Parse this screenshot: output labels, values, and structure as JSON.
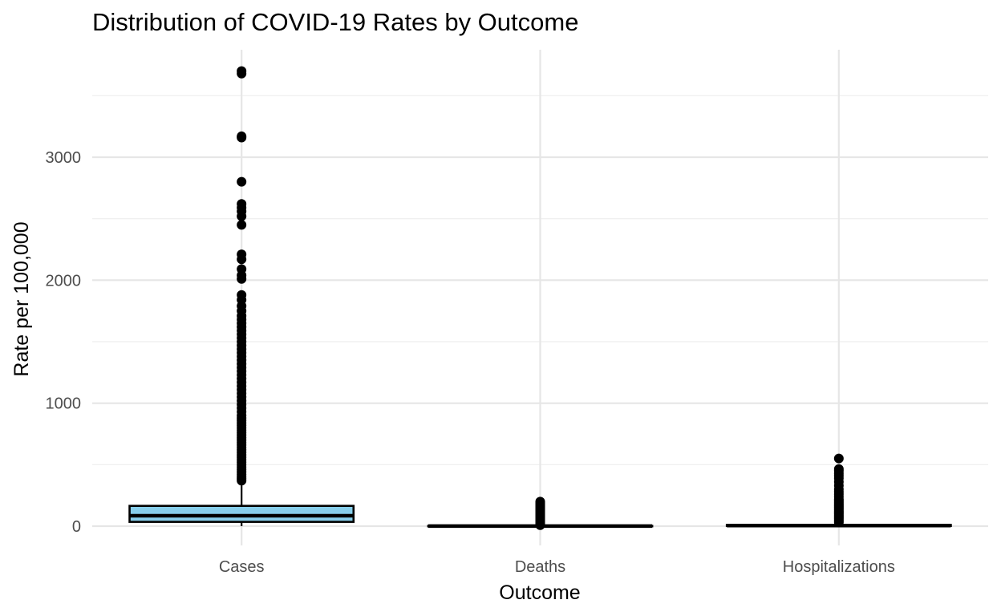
{
  "chart_data": {
    "type": "boxplot",
    "title": "Distribution of COVID-19 Rates by Outcome",
    "xlabel": "Outcome",
    "ylabel": "Rate per 100,000",
    "ylim": [
      -40,
      3760
    ],
    "y_ticks": [
      0,
      1000,
      2000,
      3000
    ],
    "y_tick_labels": [
      "0",
      "1000",
      "2000",
      "3000"
    ],
    "y_minor_ticks": [
      500,
      1500,
      2500,
      3500
    ],
    "grid": true,
    "legend": "none",
    "box_fill": "#87CEEB",
    "box_stroke": "#000000",
    "outlier_color": "#000000",
    "categories": [
      "Cases",
      "Deaths",
      "Hospitalizations"
    ],
    "boxes": [
      {
        "category": "Cases",
        "whisker_low": 0,
        "q1": 35,
        "median": 85,
        "q3": 165,
        "whisker_high": 355,
        "outliers": [
          370,
          385,
          400,
          420,
          440,
          460,
          480,
          500,
          520,
          540,
          560,
          580,
          600,
          620,
          640,
          660,
          680,
          700,
          720,
          740,
          760,
          780,
          800,
          820,
          840,
          860,
          880,
          900,
          930,
          960,
          990,
          1020,
          1050,
          1080,
          1110,
          1140,
          1170,
          1200,
          1230,
          1260,
          1290,
          1320,
          1350,
          1380,
          1410,
          1440,
          1470,
          1500,
          1530,
          1560,
          1590,
          1620,
          1650,
          1680,
          1710,
          1750,
          1790,
          1840,
          1880,
          2010,
          2040,
          2090,
          2170,
          2210,
          2450,
          2520,
          2560,
          2590,
          2620,
          2800,
          3160,
          3170,
          3680,
          3700
        ]
      },
      {
        "category": "Deaths",
        "whisker_low": 0,
        "q1": 0,
        "median": 0.5,
        "q3": 2,
        "whisker_high": 5,
        "outliers": [
          8,
          12,
          16,
          20,
          25,
          30,
          35,
          40,
          45,
          50,
          55,
          60,
          65,
          70,
          75,
          80,
          85,
          90,
          95,
          100,
          105,
          110,
          115,
          120,
          130,
          140,
          150,
          160,
          170,
          180,
          190,
          200
        ]
      },
      {
        "category": "Hospitalizations",
        "whisker_low": 0,
        "q1": 2,
        "median": 5,
        "q3": 10,
        "whisker_high": 22,
        "outliers": [
          30,
          40,
          50,
          60,
          70,
          80,
          90,
          100,
          110,
          120,
          130,
          140,
          150,
          160,
          170,
          180,
          190,
          200,
          210,
          220,
          240,
          260,
          280,
          300,
          330,
          360,
          390,
          410,
          430,
          450,
          465,
          550
        ]
      }
    ]
  }
}
